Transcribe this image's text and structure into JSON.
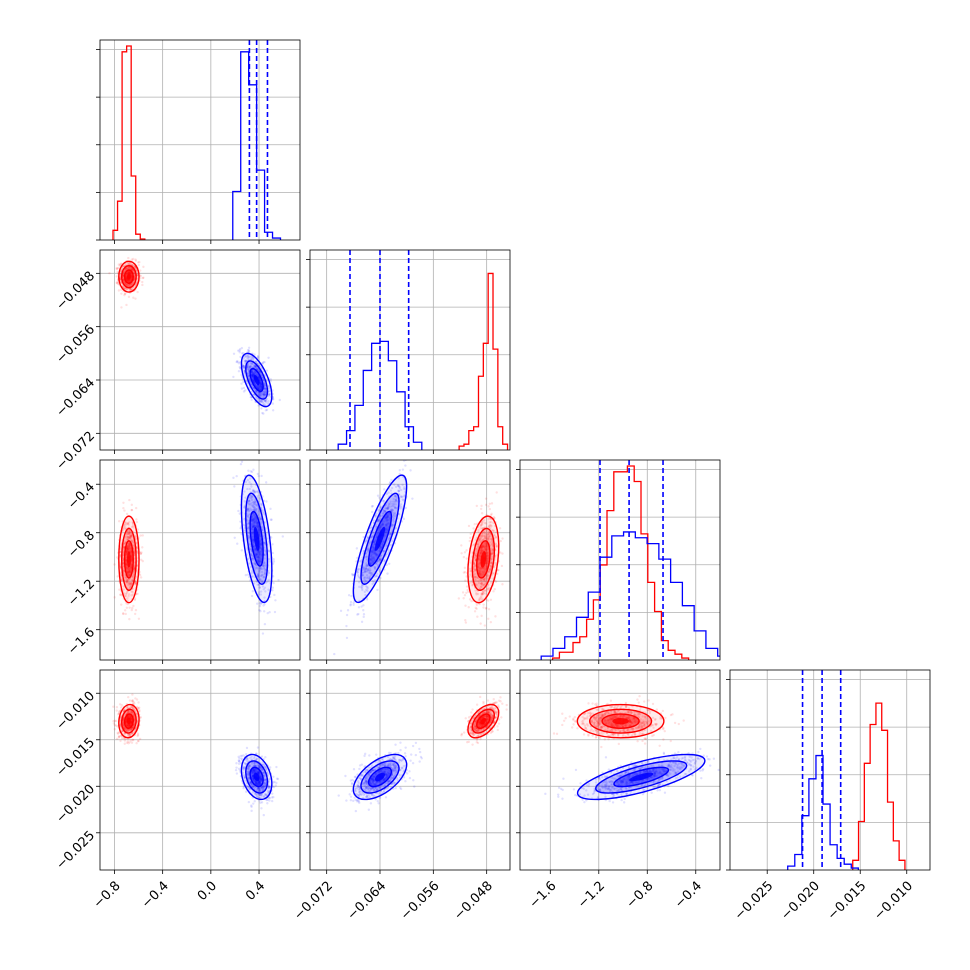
{
  "chart_data": {
    "type": "corner",
    "title": "",
    "grid": true,
    "params": [
      {
        "range": [
          -0.92,
          0.74
        ],
        "ticks": [
          -0.8,
          -0.4,
          0.0,
          0.4
        ],
        "tick_labels": [
          "−0.8",
          "−0.4",
          "0.0",
          "0.4"
        ]
      },
      {
        "range": [
          -0.0745,
          -0.0445
        ],
        "ticks": [
          -0.072,
          -0.064,
          -0.056,
          -0.048
        ],
        "tick_labels": [
          "−0.072",
          "−0.064",
          "−0.056",
          "−0.048"
        ]
      },
      {
        "range": [
          -1.85,
          -0.2
        ],
        "ticks": [
          -1.6,
          -1.2,
          -0.8,
          -0.4
        ],
        "tick_labels": [
          "−1.6",
          "−1.2",
          "−0.8",
          "−0.4"
        ]
      },
      {
        "range": [
          -0.029,
          -0.0075
        ],
        "ticks": [
          -0.025,
          -0.02,
          -0.015,
          -0.01
        ],
        "tick_labels": [
          "−0.025",
          "−0.020",
          "−0.015",
          "−0.010"
        ]
      }
    ],
    "series": [
      {
        "color": "#ff0000",
        "mean": [
          -0.68,
          -0.0485,
          -1.02,
          -0.013
        ],
        "sd": [
          0.04,
          0.0011,
          0.17,
          0.00085
        ],
        "corr": [
          [
            0,
            0
          ],
          [
            0,
            0.3
          ],
          [
            0.1,
            0.5
          ]
        ],
        "hist_counts": [
          [
            0.05,
            0.2,
            0.97,
            1.0,
            0.33,
            0.03,
            0.005
          ],
          [
            0.02,
            0.03,
            0.1,
            0.12,
            0.38,
            0.55,
            0.91,
            0.52,
            0.12,
            0.03
          ],
          [
            0.01,
            0.04,
            0.04,
            0.09,
            0.12,
            0.21,
            0.31,
            0.49,
            0.77,
            0.97,
            0.97,
            1.0,
            0.92,
            0.65,
            0.4,
            0.25,
            0.1,
            0.05,
            0.03,
            0.01
          ],
          [
            0.05,
            0.25,
            0.55,
            0.75,
            0.86,
            0.72,
            0.35,
            0.15,
            0.05
          ]
        ]
      },
      {
        "color": "#0000ff",
        "mean": [
          0.38,
          -0.064,
          -0.85,
          -0.019
        ],
        "sd": [
          0.06,
          0.0019,
          0.25,
          0.00115
        ],
        "corr": [
          [
            -0.6,
            0,
            0
          ],
          [
            -0.5,
            0.82,
            0
          ],
          [
            -0.3,
            0.55,
            0.72
          ]
        ],
        "hist_counts": [
          [
            0.25,
            0.97,
            0.8,
            0.36,
            0.04,
            0.01
          ],
          [
            0.03,
            0.1,
            0.23,
            0.41,
            0.55,
            0.56,
            0.46,
            0.3,
            0.12,
            0.04
          ],
          [
            0.02,
            0.06,
            0.12,
            0.22,
            0.35,
            0.53,
            0.64,
            0.66,
            0.63,
            0.6,
            0.52,
            0.4,
            0.28,
            0.15,
            0.06,
            0.02,
            0.01
          ],
          [
            0.02,
            0.08,
            0.28,
            0.47,
            0.59,
            0.34,
            0.13,
            0.06,
            0.03,
            0.01
          ]
        ],
        "quantiles": [
          [
            0.32,
            0.38,
            0.47
          ],
          [
            -0.0685,
            -0.064,
            -0.0597
          ],
          [
            -1.19,
            -0.95,
            -0.67
          ],
          [
            -0.0212,
            -0.0191,
            -0.0171
          ]
        ]
      }
    ]
  }
}
